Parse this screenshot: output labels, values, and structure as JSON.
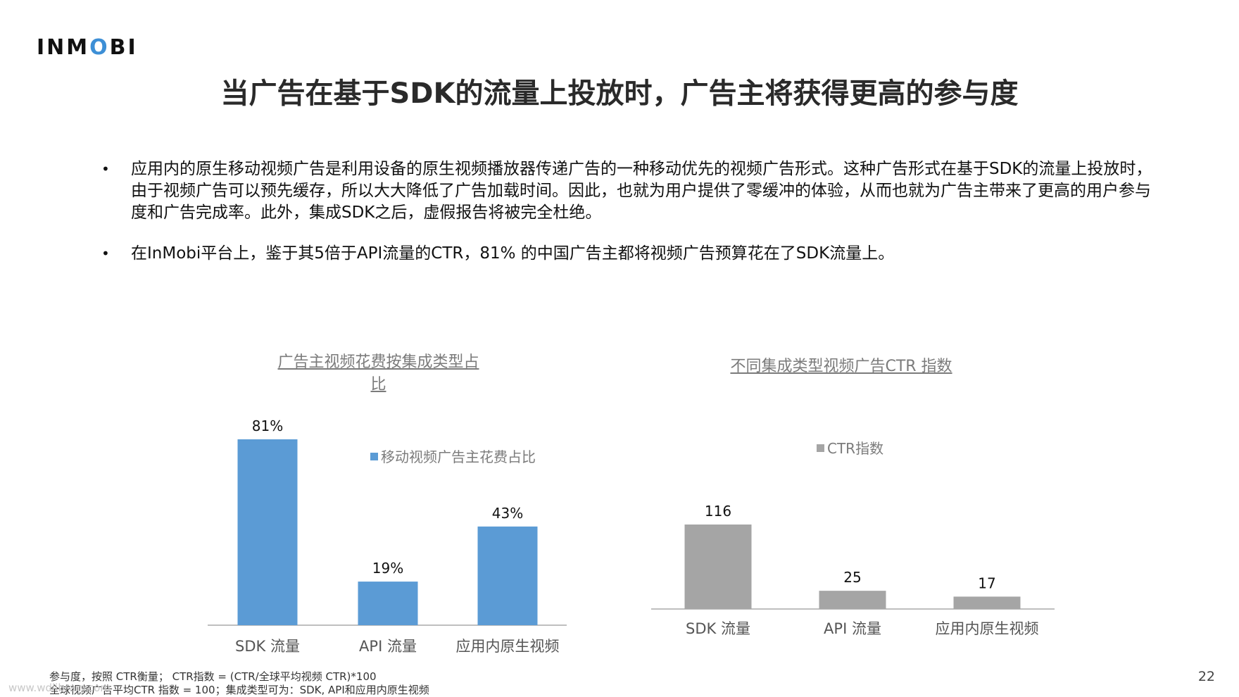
{
  "logo": {
    "text_a": "INM",
    "text_b": "O",
    "text_c": "BI"
  },
  "title": "当广告在基于SDK的流量上投放时，广告主将获得更高的参与度",
  "bullets": [
    "应用内的原生移动视频广告是利用设备的原生视频播放器传递广告的一种移动优先的视频广告形式。这种广告形式在基于SDK的流量上投放时，由于视频广告可以预先缓存，所以大大降低了广告加载时间。因此，也就为用户提供了零缓冲的体验，从而也就为广告主带来了更高的用户参与度和广告完成率。此外，集成SDK之后，虚假报告将被完全杜绝。",
    "在InMobi平台上，鉴于其5倍于API流量的CTR，81% 的中国广告主都将视频广告预算花在了SDK流量上。"
  ],
  "bullet_symbol": "•",
  "chart_data": [
    {
      "type": "bar",
      "title": "广告主视频花费按集成类型占比",
      "categories": [
        "SDK 流量",
        "API 流量",
        "应用内原生视频"
      ],
      "series": [
        {
          "name": "移动视频广告主花费占比",
          "values": [
            81,
            19,
            43
          ]
        }
      ],
      "data_labels": [
        "81%",
        "19%",
        "43%"
      ],
      "ylim": [
        0,
        81
      ],
      "legend": "top-right",
      "color": "#5b9bd5",
      "grid": false
    },
    {
      "type": "bar",
      "title": "不同集成类型视频广告CTR 指数",
      "categories": [
        "SDK 流量",
        "API 流量",
        "应用内原生视频"
      ],
      "series": [
        {
          "name": "CTR指数",
          "values": [
            116,
            25,
            17
          ]
        }
      ],
      "data_labels": [
        "116",
        "25",
        "17"
      ],
      "ylim": [
        0,
        116
      ],
      "legend": "top",
      "color": "#a5a5a5",
      "grid": false
    }
  ],
  "footnotes": [
    "参与度，按照 CTR衡量； CTR指数 = (CTR/全球平均视频 CTR)*100",
    "全球视频广告平均CTR 指数 = 100；集成类型可为：SDK, API和应用内原生视频"
  ],
  "page_number": "22",
  "watermark": "www.wdlibrary.com"
}
